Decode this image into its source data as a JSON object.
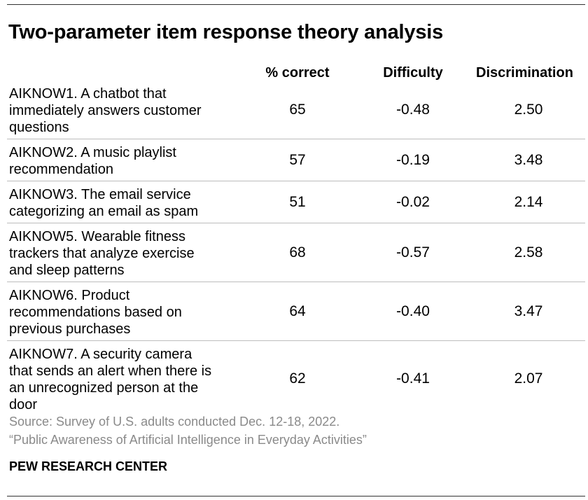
{
  "chart_data": {
    "type": "table",
    "title": "Two-parameter item response theory analysis",
    "columns": [
      "% correct",
      "Difficulty",
      "Discrimination"
    ],
    "rows": [
      {
        "item": "AIKNOW1. A chatbot that immediately answers customer questions",
        "lines": [
          "AIKNOW1. A chatbot that",
          "immediately answers customer",
          "questions"
        ],
        "correct": "65",
        "difficulty": "-0.48",
        "discrimination": "2.50"
      },
      {
        "item": "AIKNOW2. A music playlist recommendation",
        "lines": [
          "AIKNOW2. A music playlist",
          "recommendation"
        ],
        "correct": "57",
        "difficulty": "-0.19",
        "discrimination": "3.48"
      },
      {
        "item": "AIKNOW3. The email service categorizing an email as spam",
        "lines": [
          "AIKNOW3. The email service",
          "categorizing an email as spam"
        ],
        "correct": "51",
        "difficulty": "-0.02",
        "discrimination": "2.14"
      },
      {
        "item": "AIKNOW5. Wearable fitness trackers that analyze exercise and sleep patterns",
        "lines": [
          "AIKNOW5. Wearable fitness",
          "trackers that analyze exercise",
          "and sleep patterns"
        ],
        "correct": "68",
        "difficulty": "-0.57",
        "discrimination": "2.58"
      },
      {
        "item": "AIKNOW6. Product recommendations based on previous purchases",
        "lines": [
          "AIKNOW6. Product",
          "recommendations based on",
          "previous purchases"
        ],
        "correct": "64",
        "difficulty": "-0.40",
        "discrimination": "3.47"
      },
      {
        "item": "AIKNOW7. A security camera that sends an alert when there is an unrecognized person at the door",
        "lines": [
          "AIKNOW7. A security camera",
          "that sends an alert when there is",
          "an unrecognized person at the",
          "door"
        ],
        "correct": "62",
        "difficulty": "-0.41",
        "discrimination": "2.07"
      }
    ]
  },
  "footer": {
    "source": "Source: Survey of U.S. adults conducted Dec. 12-18, 2022.",
    "report": "“Public Awareness of Artificial Intelligence in Everyday Activities”",
    "organization": "PEW RESEARCH CENTER"
  },
  "colors": {
    "text": "#000000",
    "muted": "#8a8a8a",
    "divider": "#bdbdbd"
  }
}
